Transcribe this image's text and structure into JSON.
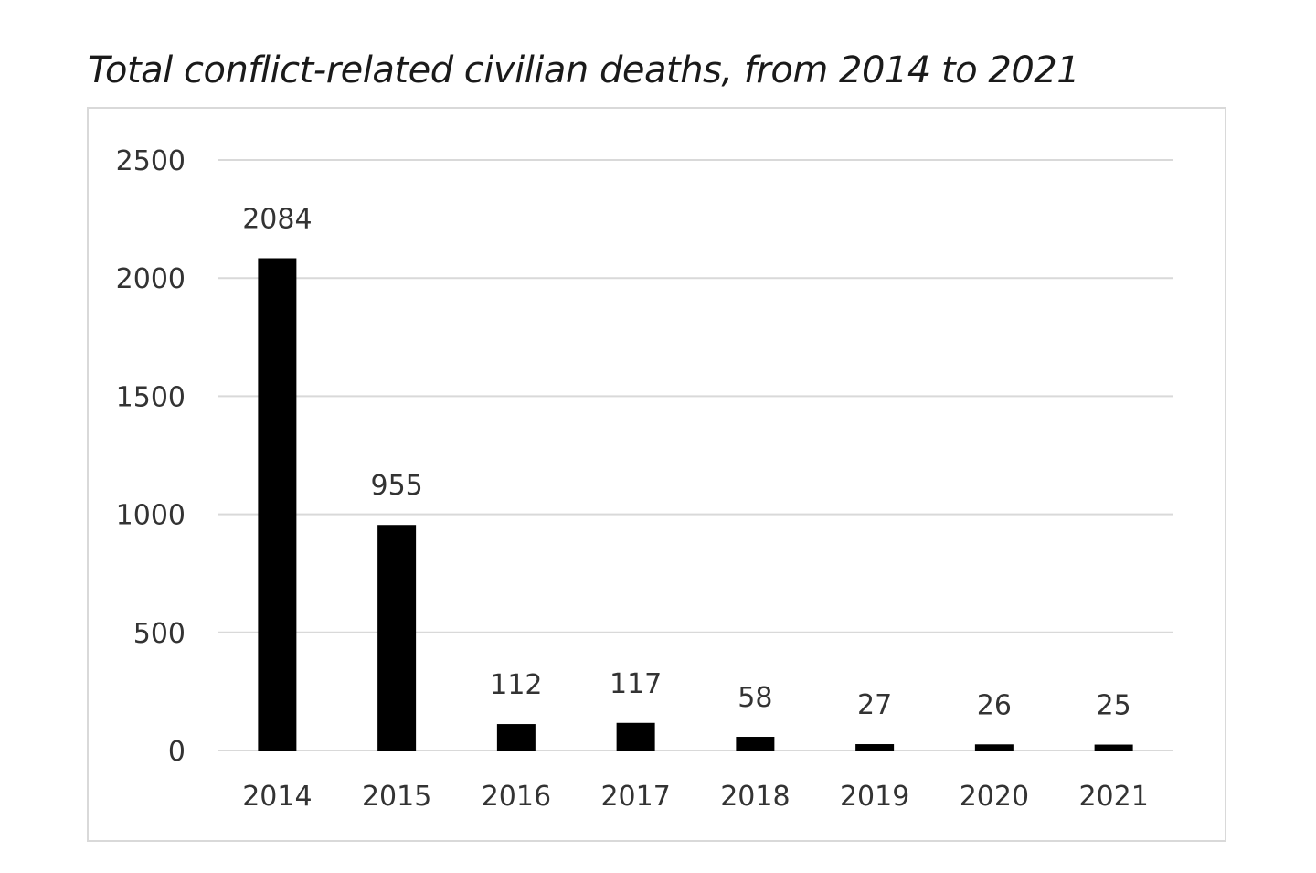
{
  "chart_data": {
    "type": "bar",
    "title": "Total conflict-related civilian deaths, from 2014 to 2021",
    "xlabel": "",
    "ylabel": "",
    "categories": [
      "2014",
      "2015",
      "2016",
      "2017",
      "2018",
      "2019",
      "2020",
      "2021"
    ],
    "values": [
      2084,
      955,
      112,
      117,
      58,
      27,
      26,
      25
    ],
    "data_labels": [
      "2084",
      "955",
      "112",
      "117",
      "58",
      "27",
      "26",
      "25"
    ],
    "ylim": [
      0,
      2500
    ],
    "yticks": [
      0,
      500,
      1000,
      1500,
      2000,
      2500
    ],
    "ytick_labels": [
      "0",
      "500",
      "1000",
      "1500",
      "2000",
      "2500"
    ],
    "grid": true,
    "legend": "none",
    "bar_color": "#000000",
    "grid_color": "#d9d9d9"
  }
}
